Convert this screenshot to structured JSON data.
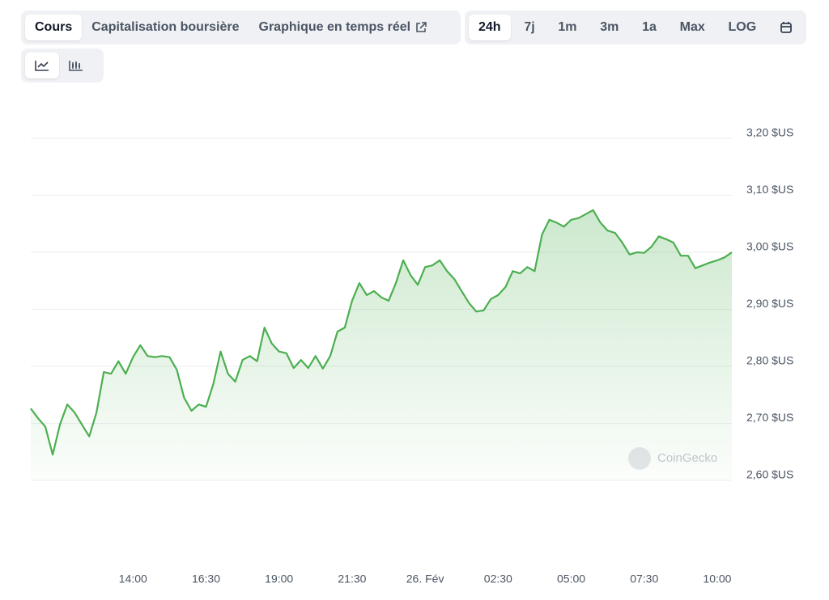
{
  "toolbar": {
    "tabs": [
      "Cours",
      "Capitalisation boursière",
      "Graphique en temps réel"
    ],
    "ranges": [
      "24h",
      "7j",
      "1m",
      "3m",
      "1a",
      "Max",
      "LOG"
    ]
  },
  "chart_data": {
    "type": "area",
    "watermark": "CoinGecko",
    "color": "#4caf50",
    "categories": [
      null,
      null,
      null,
      null,
      null,
      null,
      null,
      null,
      null,
      null,
      null,
      null,
      null,
      null,
      "14:00",
      null,
      null,
      null,
      null,
      null,
      null,
      null,
      null,
      null,
      "16:30",
      null,
      null,
      null,
      null,
      null,
      null,
      null,
      null,
      null,
      "19:00",
      null,
      null,
      null,
      null,
      null,
      null,
      null,
      null,
      null,
      "21:30",
      null,
      null,
      null,
      null,
      null,
      null,
      null,
      null,
      null,
      "26. Fév",
      null,
      null,
      null,
      null,
      null,
      null,
      null,
      null,
      null,
      "02:30",
      null,
      null,
      null,
      null,
      null,
      null,
      null,
      null,
      null,
      "05:00",
      null,
      null,
      null,
      null,
      null,
      null,
      null,
      null,
      null,
      "07:30",
      null,
      null,
      null,
      null,
      null,
      null,
      null,
      null,
      null,
      "10:00",
      null,
      null
    ],
    "values": [
      2.726,
      2.709,
      2.694,
      2.645,
      2.698,
      2.733,
      2.719,
      2.698,
      2.677,
      2.719,
      2.79,
      2.787,
      2.809,
      2.787,
      2.816,
      2.837,
      2.818,
      2.816,
      2.818,
      2.816,
      2.794,
      2.745,
      2.722,
      2.733,
      2.729,
      2.769,
      2.826,
      2.787,
      2.773,
      2.811,
      2.818,
      2.809,
      2.868,
      2.84,
      2.826,
      2.823,
      2.797,
      2.811,
      2.797,
      2.818,
      2.796,
      2.818,
      2.861,
      2.868,
      2.915,
      2.946,
      2.925,
      2.932,
      2.921,
      2.915,
      2.946,
      2.986,
      2.96,
      2.943,
      2.974,
      2.977,
      2.986,
      2.967,
      2.953,
      2.932,
      2.911,
      2.896,
      2.898,
      2.918,
      2.925,
      2.939,
      2.967,
      2.963,
      2.974,
      2.967,
      3.031,
      3.057,
      3.052,
      3.045,
      3.057,
      3.06,
      3.067,
      3.074,
      3.052,
      3.038,
      3.034,
      3.017,
      2.996,
      3.0,
      2.999,
      3.01,
      3.028,
      3.023,
      3.017,
      2.994,
      2.994,
      2.972,
      2.977,
      2.982,
      2.986,
      2.991,
      3.0
    ],
    "ylim": [
      2.6,
      3.2
    ],
    "yticks": [
      {
        "value": 2.6,
        "label": "2,60 $US"
      },
      {
        "value": 2.7,
        "label": "2,70 $US"
      },
      {
        "value": 2.8,
        "label": "2,80 $US"
      },
      {
        "value": 2.9,
        "label": "2,90 $US"
      },
      {
        "value": 3.0,
        "label": "3,00 $US"
      },
      {
        "value": 3.1,
        "label": "3,10 $US"
      },
      {
        "value": 3.2,
        "label": "3,20 $US"
      }
    ],
    "grid": true
  }
}
